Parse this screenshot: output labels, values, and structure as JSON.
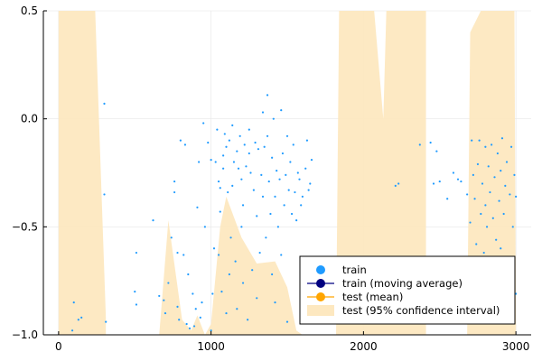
{
  "chart_data": {
    "type": "scatter",
    "title": "",
    "xlabel": "",
    "ylabel": "",
    "xlim": [
      -100,
      3100
    ],
    "ylim": [
      -1.0,
      0.5
    ],
    "xticks": [
      0,
      1000,
      2000,
      3000
    ],
    "xtick_labels": [
      "0",
      "1000",
      "2000",
      "3000"
    ],
    "yticks": [
      -1.0,
      -0.5,
      0.0,
      0.5
    ],
    "ytick_labels": [
      "-1.0",
      "-0.5",
      "0.0",
      "0.5"
    ],
    "grid": true,
    "legend_position": "bottom-right",
    "legend": [
      {
        "label": "train",
        "kind": "dot",
        "color": "#1f9bff"
      },
      {
        "label": "train (moving average)",
        "kind": "line-dot",
        "color": "#000080"
      },
      {
        "label": "test (mean)",
        "kind": "line-dot",
        "color": "#ffa500"
      },
      {
        "label": "test (95% confidence interval)",
        "kind": "band",
        "color": "#fde8c0"
      }
    ],
    "series": [
      {
        "name": "train",
        "type": "scatter",
        "color": "#1f9bff",
        "points": [
          [
            90,
            -0.98
          ],
          [
            100,
            -0.85
          ],
          [
            130,
            -0.93
          ],
          [
            150,
            -0.92
          ],
          [
            300,
            0.07
          ],
          [
            300,
            -0.35
          ],
          [
            310,
            -0.94
          ],
          [
            500,
            -0.8
          ],
          [
            510,
            -0.62
          ],
          [
            510,
            -0.86
          ],
          [
            620,
            -0.47
          ],
          [
            660,
            -0.82
          ],
          [
            690,
            -0.84
          ],
          [
            700,
            -0.9
          ],
          [
            720,
            -0.76
          ],
          [
            740,
            -0.55
          ],
          [
            760,
            -0.29
          ],
          [
            760,
            -0.34
          ],
          [
            780,
            -0.62
          ],
          [
            780,
            -0.87
          ],
          [
            790,
            -0.93
          ],
          [
            800,
            -0.1
          ],
          [
            820,
            -0.63
          ],
          [
            830,
            -0.12
          ],
          [
            840,
            -0.95
          ],
          [
            850,
            -0.72
          ],
          [
            860,
            -0.97
          ],
          [
            880,
            -0.81
          ],
          [
            890,
            -0.96
          ],
          [
            900,
            -0.88
          ],
          [
            910,
            -0.41
          ],
          [
            920,
            -0.2
          ],
          [
            930,
            -0.92
          ],
          [
            940,
            -0.85
          ],
          [
            950,
            -0.02
          ],
          [
            960,
            -0.5
          ],
          [
            980,
            -0.11
          ],
          [
            1000,
            -0.19
          ],
          [
            1000,
            -0.98
          ],
          [
            1010,
            -0.81
          ],
          [
            1020,
            -0.6
          ],
          [
            1030,
            -0.2
          ],
          [
            1040,
            -0.05
          ],
          [
            1050,
            -0.29
          ],
          [
            1050,
            -0.63
          ],
          [
            1060,
            -0.43
          ],
          [
            1060,
            -0.32
          ],
          [
            1070,
            -0.8
          ],
          [
            1080,
            -0.17
          ],
          [
            1080,
            -0.23
          ],
          [
            1090,
            -0.07
          ],
          [
            1100,
            -0.13
          ],
          [
            1100,
            -0.9
          ],
          [
            1110,
            -0.34
          ],
          [
            1120,
            -0.1
          ],
          [
            1120,
            -0.72
          ],
          [
            1130,
            -0.55
          ],
          [
            1140,
            -0.03
          ],
          [
            1140,
            -0.31
          ],
          [
            1150,
            -0.2
          ],
          [
            1160,
            -0.66
          ],
          [
            1170,
            -0.15
          ],
          [
            1170,
            -0.88
          ],
          [
            1180,
            -0.23
          ],
          [
            1190,
            -0.08
          ],
          [
            1200,
            -0.28
          ],
          [
            1200,
            -0.5
          ],
          [
            1210,
            -0.4
          ],
          [
            1210,
            -0.76
          ],
          [
            1220,
            -0.12
          ],
          [
            1230,
            -0.22
          ],
          [
            1240,
            -0.93
          ],
          [
            1250,
            -0.05
          ],
          [
            1250,
            -0.16
          ],
          [
            1260,
            -0.25
          ],
          [
            1270,
            -0.7
          ],
          [
            1280,
            -0.33
          ],
          [
            1290,
            -0.11
          ],
          [
            1300,
            -0.45
          ],
          [
            1300,
            -0.83
          ],
          [
            1310,
            -0.14
          ],
          [
            1320,
            -0.62
          ],
          [
            1330,
            -0.26
          ],
          [
            1340,
            0.03
          ],
          [
            1340,
            -0.36
          ],
          [
            1350,
            -0.13
          ],
          [
            1360,
            -0.55
          ],
          [
            1370,
            0.11
          ],
          [
            1370,
            -0.08
          ],
          [
            1380,
            -0.29
          ],
          [
            1390,
            -0.44
          ],
          [
            1400,
            -0.18
          ],
          [
            1400,
            -0.72
          ],
          [
            1410,
            0.0
          ],
          [
            1420,
            -0.36
          ],
          [
            1420,
            -0.85
          ],
          [
            1430,
            -0.24
          ],
          [
            1440,
            -0.5
          ],
          [
            1450,
            -0.28
          ],
          [
            1460,
            0.04
          ],
          [
            1460,
            -0.63
          ],
          [
            1470,
            -0.16
          ],
          [
            1480,
            -0.4
          ],
          [
            1490,
            -0.26
          ],
          [
            1500,
            -0.08
          ],
          [
            1500,
            -0.94
          ],
          [
            1510,
            -0.33
          ],
          [
            1520,
            -0.2
          ],
          [
            1530,
            -0.44
          ],
          [
            1540,
            -0.12
          ],
          [
            1550,
            -0.34
          ],
          [
            1560,
            -0.47
          ],
          [
            1570,
            -0.25
          ],
          [
            1580,
            -0.28
          ],
          [
            1590,
            -0.4
          ],
          [
            1600,
            -0.36
          ],
          [
            1620,
            -0.23
          ],
          [
            1630,
            -0.1
          ],
          [
            1640,
            -0.33
          ],
          [
            1650,
            -0.3
          ],
          [
            1660,
            -0.19
          ],
          [
            2000,
            -0.77
          ],
          [
            2100,
            -0.79
          ],
          [
            2210,
            -0.31
          ],
          [
            2230,
            -0.3
          ],
          [
            2370,
            -0.12
          ],
          [
            2440,
            -0.11
          ],
          [
            2460,
            -0.3
          ],
          [
            2480,
            -0.15
          ],
          [
            2500,
            -0.29
          ],
          [
            2550,
            -0.37
          ],
          [
            2590,
            -0.25
          ],
          [
            2620,
            -0.28
          ],
          [
            2640,
            -0.29
          ],
          [
            2680,
            -0.35
          ],
          [
            2700,
            -0.48
          ],
          [
            2710,
            -0.1
          ],
          [
            2720,
            -0.26
          ],
          [
            2730,
            -0.37
          ],
          [
            2740,
            -0.58
          ],
          [
            2750,
            -0.21
          ],
          [
            2760,
            -0.1
          ],
          [
            2770,
            -0.44
          ],
          [
            2780,
            -0.3
          ],
          [
            2790,
            -0.62
          ],
          [
            2800,
            -0.13
          ],
          [
            2800,
            -0.4
          ],
          [
            2810,
            -0.5
          ],
          [
            2820,
            -0.22
          ],
          [
            2830,
            -0.34
          ],
          [
            2840,
            -0.12
          ],
          [
            2850,
            -0.46
          ],
          [
            2860,
            -0.27
          ],
          [
            2870,
            -0.56
          ],
          [
            2880,
            -0.16
          ],
          [
            2890,
            -0.38
          ],
          [
            2900,
            -0.6
          ],
          [
            2900,
            -0.24
          ],
          [
            2910,
            -0.09
          ],
          [
            2920,
            -0.44
          ],
          [
            2930,
            -0.31
          ],
          [
            2940,
            -0.2
          ],
          [
            2950,
            -0.7
          ],
          [
            2960,
            -0.35
          ],
          [
            2970,
            -0.13
          ],
          [
            2980,
            -0.5
          ],
          [
            2990,
            -0.26
          ],
          [
            3000,
            -0.81
          ],
          [
            3000,
            -0.36
          ]
        ]
      },
      {
        "name": "test (95% confidence interval)",
        "type": "band",
        "color": "#fde8c0",
        "points": [
          [
            0,
            -1.0,
            0.42
          ],
          [
            0,
            -1.0,
            0.5
          ],
          [
            240,
            -1.0,
            0.5
          ],
          [
            310,
            -1.0,
            -0.92
          ],
          [
            310,
            -1.0,
            -1.0
          ],
          [
            660,
            -1.0,
            -1.0
          ],
          [
            720,
            -1.0,
            -0.47
          ],
          [
            810,
            -1.0,
            -0.93
          ],
          [
            870,
            -1.0,
            -0.98
          ],
          [
            910,
            -1.0,
            -0.91
          ],
          [
            960,
            -1.0,
            -1.0
          ],
          [
            1000,
            -1.0,
            -0.95
          ],
          [
            1060,
            -1.0,
            -0.5
          ],
          [
            1100,
            -1.0,
            -0.36
          ],
          [
            1200,
            -1.0,
            -0.55
          ],
          [
            1300,
            -1.0,
            -0.67
          ],
          [
            1420,
            -1.0,
            -0.66
          ],
          [
            1500,
            -1.0,
            -0.78
          ],
          [
            1560,
            -1.0,
            -0.98
          ],
          [
            1600,
            -1.0,
            -1.0
          ],
          [
            1820,
            -1.0,
            -1.0
          ],
          [
            1840,
            -1.0,
            0.5
          ],
          [
            2070,
            -1.0,
            0.5
          ],
          [
            2130,
            -1.0,
            0.0
          ],
          [
            2150,
            -1.0,
            0.5
          ],
          [
            2410,
            -1.0,
            0.5
          ],
          [
            2410,
            -1.0,
            -1.0
          ],
          [
            2680,
            -1.0,
            -1.0
          ],
          [
            2700,
            -1.0,
            0.4
          ],
          [
            2770,
            -1.0,
            0.5
          ],
          [
            2990,
            -1.0,
            0.5
          ],
          [
            3000,
            -1.0,
            -0.94
          ],
          [
            3000,
            -1.0,
            -1.0
          ]
        ]
      }
    ]
  }
}
